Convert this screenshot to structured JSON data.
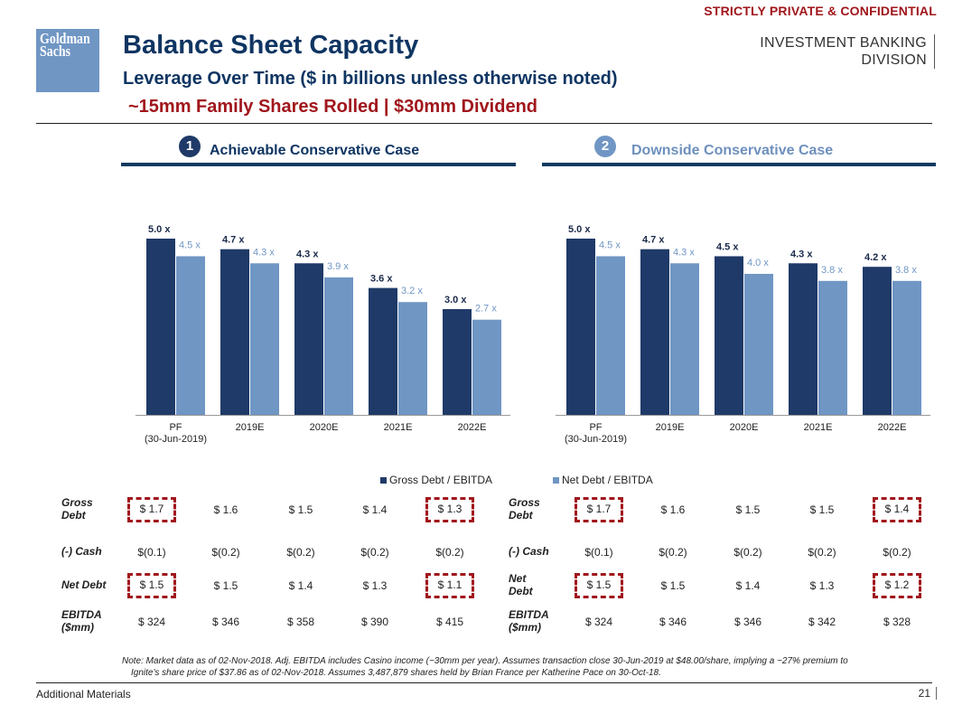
{
  "header": {
    "confidential": "STRICTLY PRIVATE & CONFIDENTIAL",
    "logo_line1": "Goldman",
    "logo_line2": "Sachs",
    "division_line1": "INVESTMENT BANKING",
    "division_line2": "DIVISION",
    "title": "Balance Sheet Capacity",
    "subtitle": "Leverage Over Time ($ in billions unless otherwise noted)",
    "subtitle2": "~15mm Family Shares Rolled | $30mm Dividend"
  },
  "colors": {
    "gross": "#1f3a68",
    "net": "#7096c4",
    "accent_red": "#a0161c",
    "title_blue": "#0f3562"
  },
  "cases": [
    {
      "number": "1",
      "label": "Achievable Conservative Case"
    },
    {
      "number": "2",
      "label": "Downside Conservative Case"
    }
  ],
  "legend": {
    "gross": "Gross Debt / EBITDA",
    "net": "Net Debt / EBITDA"
  },
  "chart_data": [
    {
      "type": "bar",
      "title": "Achievable Conservative Case",
      "categories": [
        "PF\n(30-Jun-2019)",
        "2019E",
        "2020E",
        "2021E",
        "2022E"
      ],
      "series": [
        {
          "name": "Gross Debt / EBITDA",
          "values": [
            5.0,
            4.7,
            4.3,
            3.6,
            3.0
          ],
          "labels": [
            "5.0 x",
            "4.7 x",
            "4.3 x",
            "3.6 x",
            "3.0 x"
          ]
        },
        {
          "name": "Net Debt / EBITDA",
          "values": [
            4.5,
            4.3,
            3.9,
            3.2,
            2.7
          ],
          "labels": [
            "4.5 x",
            "4.3 x",
            "3.9 x",
            "3.2 x",
            "2.7 x"
          ]
        }
      ],
      "xlabel": "",
      "ylabel": "",
      "ylim": [
        0,
        5.0
      ],
      "grid": false,
      "legend": "bottom"
    },
    {
      "type": "bar",
      "title": "Downside Conservative Case",
      "categories": [
        "PF\n(30-Jun-2019)",
        "2019E",
        "2020E",
        "2021E",
        "2022E"
      ],
      "series": [
        {
          "name": "Gross Debt / EBITDA",
          "values": [
            5.0,
            4.7,
            4.5,
            4.3,
            4.2
          ],
          "labels": [
            "5.0 x",
            "4.7 x",
            "4.5 x",
            "4.3 x",
            "4.2 x"
          ]
        },
        {
          "name": "Net Debt / EBITDA",
          "values": [
            4.5,
            4.3,
            4.0,
            3.8,
            3.8
          ],
          "labels": [
            "4.5 x",
            "4.3 x",
            "4.0 x",
            "3.8 x",
            "3.8 x"
          ]
        }
      ],
      "xlabel": "",
      "ylabel": "",
      "ylim": [
        0,
        5.0
      ],
      "grid": false,
      "legend": "bottom"
    }
  ],
  "tables": [
    {
      "rows": [
        {
          "label": "Gross\nDebt",
          "values": [
            "$ 1.7",
            "$ 1.6",
            "$ 1.5",
            "$ 1.4",
            "$ 1.3"
          ],
          "highlight": [
            true,
            false,
            false,
            false,
            true
          ]
        },
        {
          "label": "(-) Cash",
          "values": [
            "$(0.1)",
            "$(0.2)",
            "$(0.2)",
            "$(0.2)",
            "$(0.2)"
          ],
          "highlight": [
            false,
            false,
            false,
            false,
            false
          ]
        },
        {
          "label": "Net Debt",
          "values": [
            "$ 1.5",
            "$ 1.5",
            "$ 1.4",
            "$ 1.3",
            "$ 1.1"
          ],
          "highlight": [
            true,
            false,
            false,
            false,
            true
          ]
        },
        {
          "label": "EBITDA\n($mm)",
          "values": [
            "$ 324",
            "$ 346",
            "$ 358",
            "$ 390",
            "$ 415"
          ],
          "highlight": [
            false,
            false,
            false,
            false,
            false
          ]
        }
      ]
    },
    {
      "rows": [
        {
          "label": "Gross\nDebt",
          "values": [
            "$ 1.7",
            "$ 1.6",
            "$ 1.5",
            "$ 1.5",
            "$ 1.4"
          ],
          "highlight": [
            true,
            false,
            false,
            false,
            true
          ]
        },
        {
          "label": "(-) Cash",
          "values": [
            "$(0.1)",
            "$(0.2)",
            "$(0.2)",
            "$(0.2)",
            "$(0.2)"
          ],
          "highlight": [
            false,
            false,
            false,
            false,
            false
          ]
        },
        {
          "label": "Net\nDebt",
          "values": [
            "$ 1.5",
            "$ 1.5",
            "$ 1.4",
            "$ 1.3",
            "$ 1.2"
          ],
          "highlight": [
            true,
            false,
            false,
            false,
            true
          ]
        },
        {
          "label": "EBITDA\n($mm)",
          "values": [
            "$ 324",
            "$ 346",
            "$ 346",
            "$ 342",
            "$ 328"
          ],
          "highlight": [
            false,
            false,
            false,
            false,
            false
          ]
        }
      ]
    }
  ],
  "note": {
    "line1": "Note: Market data as of 02-Nov-2018. Adj. EBITDA includes Casino income (~30mm per year). Assumes transaction close 30-Jun-2019 at $48.00/share, implying a ~27% premium to",
    "line2": "Ignite's share price of $37.86 as of 02-Nov-2018. Assumes 3,487,879 shares held by Brian France per Katherine Pace on 30-Oct-18."
  },
  "footer": {
    "section": "Additional Materials",
    "page": "21"
  }
}
